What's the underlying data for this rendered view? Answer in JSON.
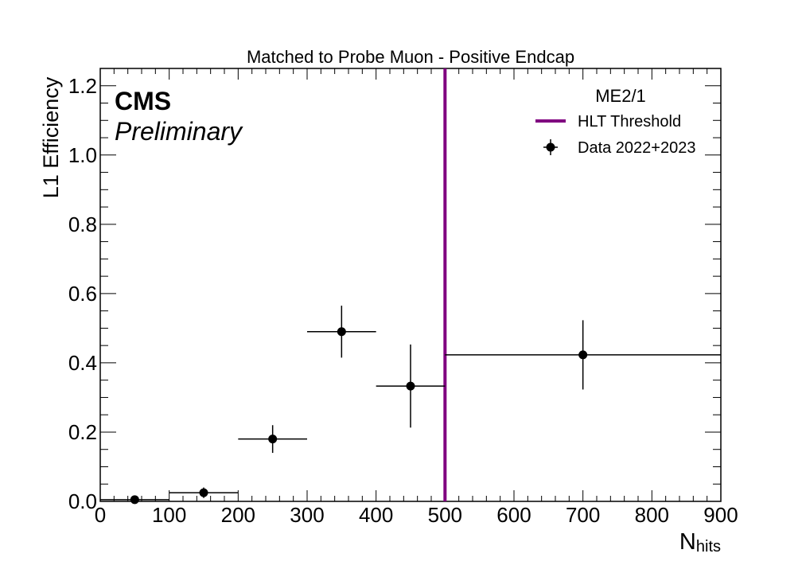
{
  "chart_data": {
    "type": "scatter",
    "title": "Matched to Probe Muon - Positive Endcap",
    "xlabel_main": "N",
    "xlabel_sub": "hits",
    "ylabel": "L1 Efficiency",
    "xlim": [
      0,
      900
    ],
    "ylim": [
      0,
      1.25
    ],
    "xticks": [
      "0",
      "100",
      "200",
      "300",
      "400",
      "500",
      "600",
      "700",
      "800",
      "900"
    ],
    "yticks": [
      "0.0",
      "0.2",
      "0.4",
      "0.6",
      "0.8",
      "1.0",
      "1.2"
    ],
    "experiment_label": "CMS",
    "status_label": "Preliminary",
    "legend_title": "ME2/1",
    "legend_placement": "top-right",
    "threshold": {
      "name": "HLT Threshold",
      "x": 500,
      "color": "#800080"
    },
    "series": [
      {
        "name": "Data 2022+2023",
        "color": "#000000",
        "points": [
          {
            "x": 50,
            "xlow": 0,
            "xhigh": 100,
            "y": 0.005,
            "yerr": 0.004
          },
          {
            "x": 150,
            "xlow": 100,
            "xhigh": 200,
            "y": 0.025,
            "yerr": 0.015
          },
          {
            "x": 250,
            "xlow": 200,
            "xhigh": 300,
            "y": 0.18,
            "yerr": 0.04
          },
          {
            "x": 350,
            "xlow": 300,
            "xhigh": 400,
            "y": 0.49,
            "yerr": 0.075
          },
          {
            "x": 450,
            "xlow": 400,
            "xhigh": 500,
            "y": 0.333,
            "yerr": 0.12
          },
          {
            "x": 700,
            "xlow": 500,
            "xhigh": 900,
            "y": 0.423,
            "yerr": 0.1
          }
        ]
      }
    ]
  }
}
